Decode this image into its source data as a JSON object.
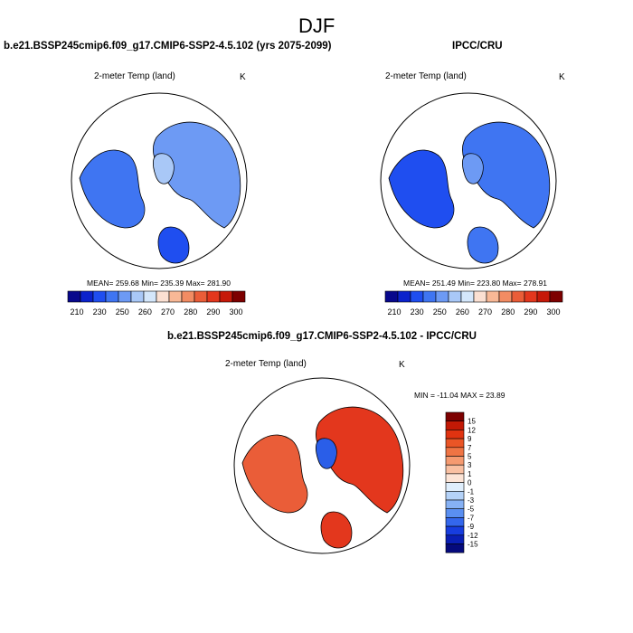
{
  "page": {
    "title": "DJF"
  },
  "panels": [
    {
      "heading": "b.e21.BSSP245cmip6.f09_g17.CMIP6-SSP2-4.5.102 (yrs 2075-2099)",
      "variable": "2-meter Temp (land)",
      "units": "K",
      "stats": "MEAN= 259.68   Min= 235.39   Max= 281.90"
    },
    {
      "heading": "IPCC/CRU",
      "variable": "2-meter Temp (land)",
      "units": "K",
      "stats": "MEAN= 251.49   Min= 223.80   Max= 278.91"
    },
    {
      "heading": "b.e21.BSSP245cmip6.f09_g17.CMIP6-SSP2-4.5.102 - IPCC/CRU",
      "variable": "2-meter Temp (land)",
      "units": "K",
      "stats": "MIN = -11.04  MAX =  23.89"
    }
  ],
  "colors": {
    "abs_bar": [
      "#08088c",
      "#0b22cc",
      "#1f4ef0",
      "#3f75f2",
      "#6d9af4",
      "#a9c8f7",
      "#d4e7fb",
      "#fbe0d2",
      "#f8b896",
      "#f28c63",
      "#ea5d38",
      "#e3371d",
      "#c61909",
      "#7d0000"
    ],
    "diff_bar": [
      "#7d0000",
      "#c21905",
      "#e03310",
      "#ea5526",
      "#ef7444",
      "#f59a70",
      "#f9c0a2",
      "#fce4d6",
      "#dfeefc",
      "#b4d2f8",
      "#86b1f4",
      "#5a8ff1",
      "#3467ec",
      "#173ddf",
      "#0a1fb5",
      "#050a7c"
    ]
  },
  "chart_data": [
    {
      "type": "heatmap",
      "projection": "north-polar-stereographic",
      "title": "b.e21.BSSP245cmip6.f09_g17.CMIP6-SSP2-4.5.102 (yrs 2075-2099)",
      "variable": "2-meter Temp (land)",
      "units": "K",
      "mean": 259.68,
      "min": 235.39,
      "max": 281.9,
      "colorbar_levels": [
        210,
        220,
        230,
        240,
        250,
        255,
        260,
        265,
        270,
        275,
        280,
        285,
        290,
        295,
        300
      ],
      "colorbar_labels": [
        "210",
        "230",
        "250",
        "260",
        "270",
        "280",
        "290",
        "300"
      ]
    },
    {
      "type": "heatmap",
      "projection": "north-polar-stereographic",
      "title": "IPCC/CRU",
      "variable": "2-meter Temp (land)",
      "units": "K",
      "mean": 251.49,
      "min": 223.8,
      "max": 278.91,
      "colorbar_levels": [
        210,
        220,
        230,
        240,
        250,
        255,
        260,
        265,
        270,
        275,
        280,
        285,
        290,
        295,
        300
      ],
      "colorbar_labels": [
        "210",
        "230",
        "250",
        "260",
        "270",
        "280",
        "290",
        "300"
      ]
    },
    {
      "type": "heatmap",
      "projection": "north-polar-stereographic",
      "title": "b.e21.BSSP245cmip6.f09_g17.CMIP6-SSP2-4.5.102 - IPCC/CRU",
      "variable": "2-meter Temp (land)",
      "units": "K",
      "min": -11.04,
      "max": 23.89,
      "colorbar_labels": [
        "15",
        "12",
        "9",
        "7",
        "5",
        "3",
        "1",
        "0",
        "-1",
        "-3",
        "-5",
        "-7",
        "-9",
        "-12",
        "-15"
      ]
    }
  ]
}
